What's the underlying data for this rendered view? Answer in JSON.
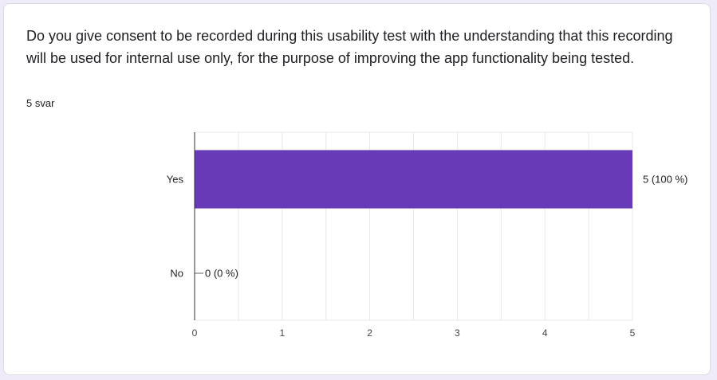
{
  "question": "Do you give consent to be recorded during this usability test with the understanding that this recording will be used for internal use only, for the purpose of improving the app functionality being tested.",
  "response_count": "5 svar",
  "chart_data": {
    "type": "bar",
    "orientation": "horizontal",
    "categories": [
      "Yes",
      "No"
    ],
    "values": [
      5,
      0
    ],
    "data_labels": [
      "5 (100 %)",
      "0 (0 %)"
    ],
    "xlim": [
      0,
      5
    ],
    "xticks": [
      "0",
      "1",
      "2",
      "3",
      "4",
      "5"
    ],
    "grid": true,
    "bar_color": "#673ab7",
    "grid_color": "#e8e8e8",
    "axis_color": "#333333",
    "title": "",
    "xlabel": "",
    "ylabel": ""
  }
}
